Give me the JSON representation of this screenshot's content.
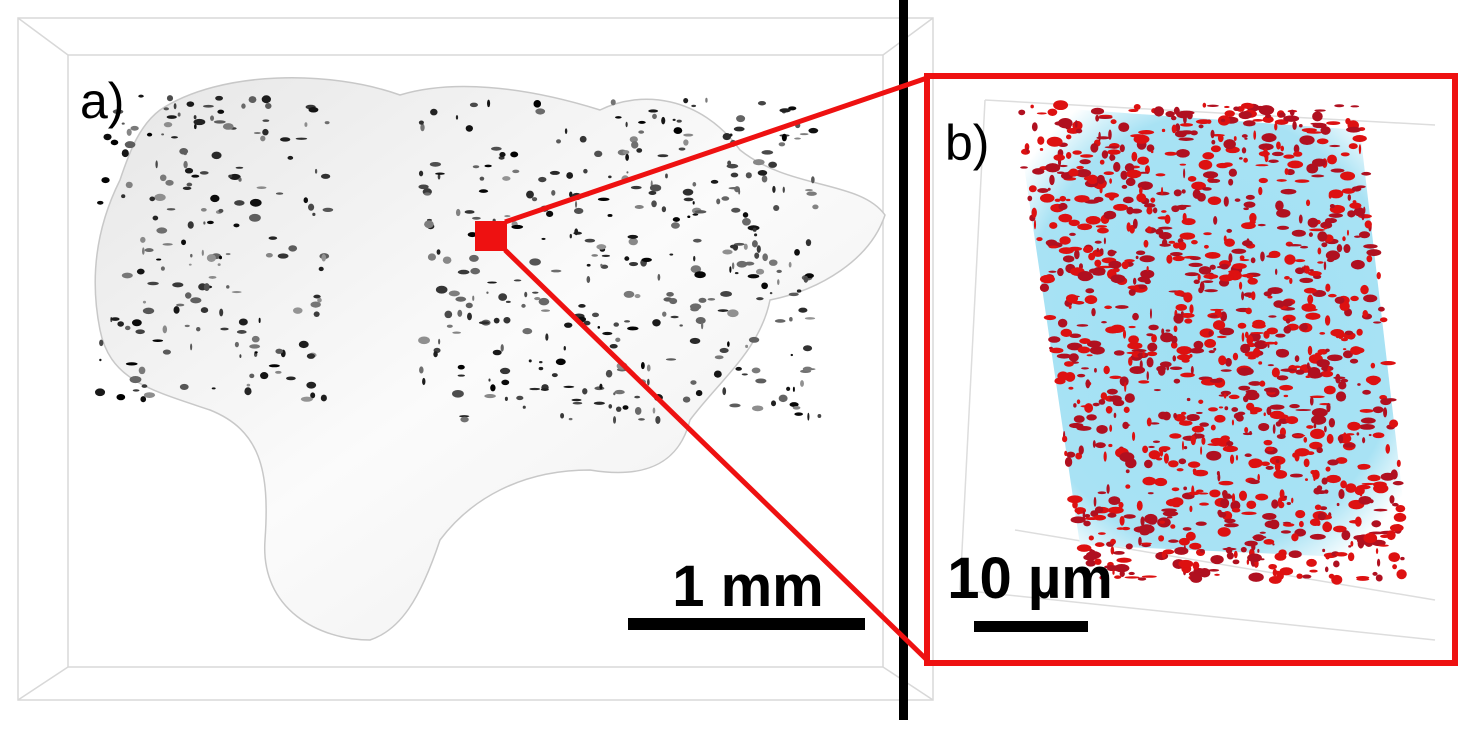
{
  "panels": [
    {
      "label": "a)",
      "scale_bar": "1 mm"
    },
    {
      "label": "b)",
      "scale_bar": "10 µm"
    }
  ]
}
